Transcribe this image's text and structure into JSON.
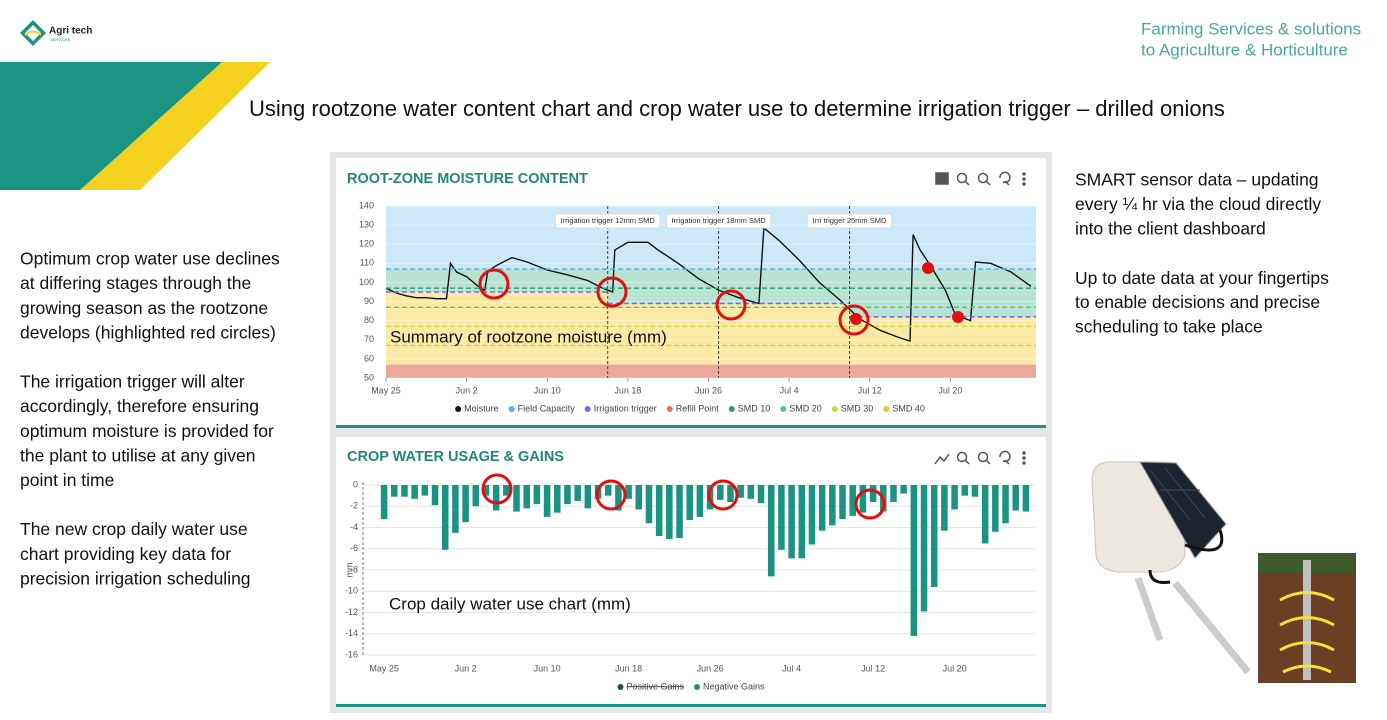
{
  "logo": {
    "name": "Agri tech",
    "sub": "SERVICES"
  },
  "tagline": [
    "Farming Services & solutions",
    "to Agriculture & Horticulture"
  ],
  "title": "Using rootzone water content chart and crop water use to determine irrigation trigger – drilled onions",
  "left_text": [
    [
      "Optimum crop water use declines",
      "at differing stages through the",
      "growing season as the rootzone",
      "develops (highlighted red circles)"
    ],
    [
      "The irrigation trigger will alter",
      "accordingly, therefore ensuring",
      "optimum moisture is provided for",
      "the plant to utilise at any given",
      "point in time"
    ],
    [
      "The new crop daily water use",
      "chart providing key data for",
      "precision irrigation scheduling"
    ]
  ],
  "right_text": [
    [
      "SMART sensor data – updating",
      "every ¼ hr via the cloud directly",
      "into the client dashboard"
    ],
    [
      "Up to date data at your fingertips",
      "to enable decisions and precise",
      "scheduling to take place"
    ]
  ],
  "chart_data": [
    {
      "type": "line",
      "title": "ROOT-ZONE MOISTURE CONTENT",
      "caption": "Summary of rootzone moisture (mm)",
      "xlim": [
        0,
        64.5
      ],
      "xticks": [
        {
          "value": 0,
          "label": "May 25"
        },
        {
          "value": 8,
          "label": "Jun 2"
        },
        {
          "value": 16,
          "label": "Jun 10"
        },
        {
          "value": 24,
          "label": "Jun 18"
        },
        {
          "value": 32,
          "label": "Jun 26"
        },
        {
          "value": 40,
          "label": "Jul 4"
        },
        {
          "value": 48,
          "label": "Jul 12"
        },
        {
          "value": 56,
          "label": "Jul 20"
        }
      ],
      "ylim": [
        50,
        140
      ],
      "yticks": [
        50,
        60,
        70,
        80,
        90,
        100,
        110,
        120,
        130,
        140
      ],
      "grid": true,
      "series": [
        {
          "name": "Moisture",
          "color": "#111111",
          "style": "line",
          "x": [
            0,
            1,
            2,
            3,
            4,
            5,
            6,
            6.4,
            7,
            8,
            9,
            9.8,
            10.1,
            11,
            12.5,
            14,
            16,
            18,
            20,
            21.5,
            22.5,
            22.7,
            24,
            26,
            27,
            29,
            31,
            33,
            35,
            37,
            37.5,
            39,
            41,
            43,
            45,
            47,
            49,
            51,
            52,
            52.3,
            53,
            54,
            55.5,
            56.5,
            58,
            58.5,
            60,
            62,
            64
          ],
          "values": [
            97,
            94.5,
            93,
            92,
            92,
            91.5,
            91.5,
            110,
            105.5,
            103,
            98.6,
            96,
            106,
            109,
            113,
            110.7,
            106.5,
            104,
            101,
            97,
            95,
            117,
            121,
            121,
            117,
            110,
            102,
            96,
            92,
            89,
            128.5,
            122,
            111.7,
            100,
            91,
            81,
            75,
            71,
            69.3,
            125,
            117,
            109,
            96,
            83,
            80,
            110.7,
            110,
            105.5,
            98
          ]
        },
        {
          "name": "Field Capacity",
          "color": "#4fb3e8",
          "style": "hline",
          "values": [
            107
          ]
        },
        {
          "name": "Irrigation trigger",
          "color": "#7b68ee",
          "style": "step",
          "x": [
            0,
            22,
            46
          ],
          "values": [
            95,
            89,
            82
          ]
        },
        {
          "name": "Refill Point",
          "color": "#e8705a",
          "style": "floor",
          "values": [
            57
          ]
        },
        {
          "name": "SMD 10",
          "color": "#2e9e7a",
          "style": "hline",
          "values": [
            97
          ]
        },
        {
          "name": "SMD 20",
          "color": "#5cc08a",
          "style": "hline",
          "values": [
            87
          ]
        },
        {
          "name": "SMD 30",
          "color": "#c7d94a",
          "style": "hline",
          "values": [
            77
          ]
        },
        {
          "name": "SMD 40",
          "color": "#f0c030",
          "style": "hline",
          "values": [
            67
          ]
        }
      ],
      "annotations": [
        {
          "text": "Irrigation trigger 12mm SMD",
          "x": 22
        },
        {
          "text": "Irrigation trigger 18mm SMD",
          "x": 33
        },
        {
          "text": "Irri trigger 25mm SMD",
          "x": 46
        }
      ]
    },
    {
      "type": "bar",
      "title": "CROP WATER USAGE & GAINS",
      "caption": "Crop daily water use chart (mm)",
      "ylabel": "mm",
      "categories": [
        "May 25",
        null,
        null,
        null,
        null,
        null,
        null,
        null,
        "Jun 2",
        null,
        null,
        null,
        null,
        null,
        null,
        null,
        "Jun 10",
        null,
        null,
        null,
        null,
        null,
        null,
        null,
        "Jun 18",
        null,
        null,
        null,
        null,
        null,
        null,
        null,
        "Jun 26",
        null,
        null,
        null,
        null,
        null,
        null,
        null,
        "Jul 4",
        null,
        null,
        null,
        null,
        null,
        null,
        null,
        "Jul 12",
        null,
        null,
        null,
        null,
        null,
        null,
        null,
        "Jul 20",
        null,
        null,
        null,
        null,
        null,
        null,
        null
      ],
      "ylim": [
        -16,
        0
      ],
      "yticks": [
        0,
        -2,
        -4,
        -6,
        -8,
        -10,
        -12,
        -14,
        -16
      ],
      "grid": true,
      "series": [
        {
          "name": "Positive Gains",
          "color": "#1f4e5a",
          "hidden": true
        },
        {
          "name": "Negative Gains",
          "color": "#1a9383",
          "values": [
            -3.2,
            -1.1,
            -1.1,
            -1.3,
            -1.0,
            -1.9,
            -6.1,
            -4.5,
            -3.5,
            -2.0,
            -1.0,
            -2.4,
            -1.0,
            -2.5,
            -2.2,
            -1.8,
            -3.0,
            -2.6,
            -1.8,
            -1.5,
            -2.2,
            -1.3,
            -1.0,
            -2.4,
            -1.3,
            -2.3,
            -3.6,
            -4.8,
            -5.1,
            -5.0,
            -3.3,
            -3.0,
            -2.3,
            -1.4,
            -1.6,
            -1.2,
            -1.3,
            -1.7,
            -8.6,
            -6.1,
            -6.9,
            -6.9,
            -5.6,
            -4.3,
            -3.8,
            -3.2,
            -2.9,
            -2.6,
            -1.6,
            -2.5,
            -1.6,
            -0.8,
            -14.2,
            -11.9,
            -9.6,
            -4.3,
            -2.3,
            -1.0,
            -1.1,
            -5.5,
            -4.4,
            -3.6,
            -2.4,
            -2.5
          ]
        }
      ]
    }
  ]
}
